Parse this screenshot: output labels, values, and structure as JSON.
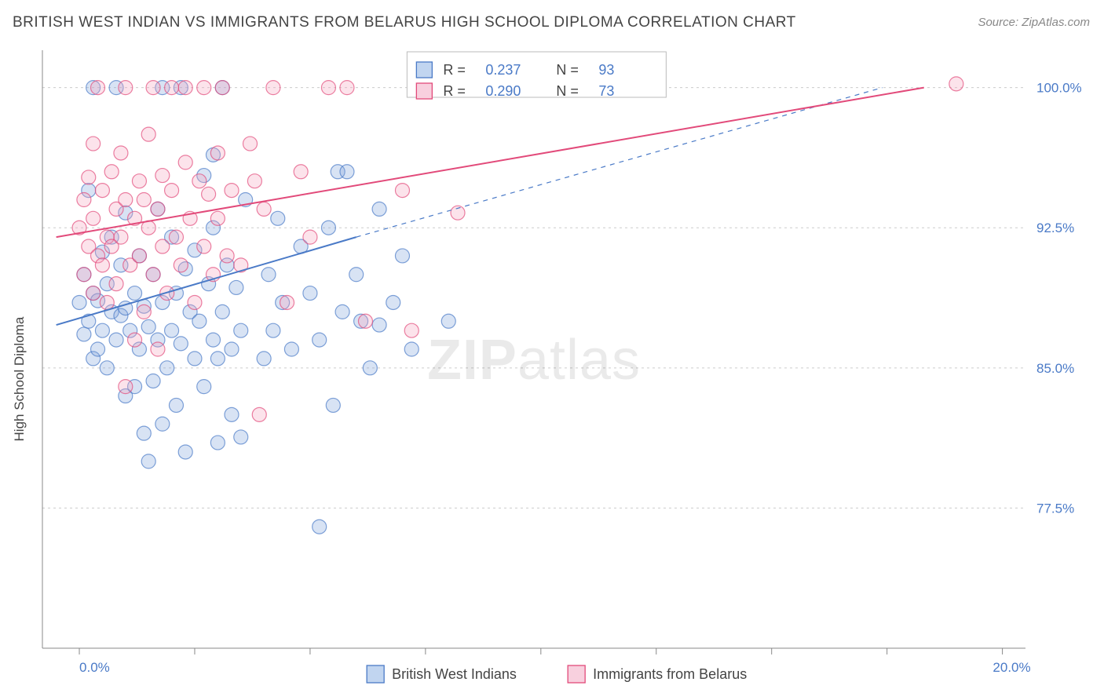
{
  "title": "BRITISH WEST INDIAN VS IMMIGRANTS FROM BELARUS HIGH SCHOOL DIPLOMA CORRELATION CHART",
  "source": "Source: ZipAtlas.com",
  "watermark_a": "ZIP",
  "watermark_b": "atlas",
  "chart": {
    "type": "scatter",
    "background_color": "#ffffff",
    "grid_color": "#cccccc",
    "axis_color": "#888888",
    "tick_color": "#888888",
    "label_color": "#4a7ac7",
    "ylabel": "High School Diploma",
    "xlim": [
      -0.8,
      20.5
    ],
    "ylim": [
      70.0,
      102.0
    ],
    "xticks": [
      0.0,
      2.5,
      5.0,
      7.5,
      10.0,
      12.5,
      15.0,
      17.5,
      20.0
    ],
    "xtick_labels": {
      "first": "0.0%",
      "last": "20.0%"
    },
    "yticks": [
      77.5,
      85.0,
      92.5,
      100.0
    ],
    "ytick_labels": [
      "77.5%",
      "85.0%",
      "92.5%",
      "100.0%"
    ],
    "marker_radius": 9,
    "marker_stroke_width": 1.2,
    "marker_fill_opacity": 0.3,
    "trend_line_width": 2,
    "trend_dash": "6,6",
    "series": [
      {
        "name": "British West Indians",
        "color_stroke": "#4a7ac7",
        "color_fill": "#7ea3dc",
        "R": "0.237",
        "N": "93",
        "trend": {
          "x1": -0.5,
          "y1": 87.3,
          "x2_solid": 6.0,
          "y2_solid": 92.0,
          "x2_dash": 17.4,
          "y2_dash": 100.0
        },
        "points": [
          [
            0.0,
            88.5
          ],
          [
            0.1,
            90.0
          ],
          [
            0.1,
            86.8
          ],
          [
            0.2,
            87.5
          ],
          [
            0.2,
            94.5
          ],
          [
            0.3,
            85.5
          ],
          [
            0.3,
            89.0
          ],
          [
            0.3,
            100.0
          ],
          [
            0.4,
            86.0
          ],
          [
            0.4,
            88.6
          ],
          [
            0.5,
            91.2
          ],
          [
            0.5,
            87.0
          ],
          [
            0.6,
            89.5
          ],
          [
            0.6,
            85.0
          ],
          [
            0.7,
            88.0
          ],
          [
            0.7,
            92.0
          ],
          [
            0.8,
            86.5
          ],
          [
            0.8,
            100.0
          ],
          [
            0.9,
            87.8
          ],
          [
            0.9,
            90.5
          ],
          [
            1.0,
            83.5
          ],
          [
            1.0,
            88.2
          ],
          [
            1.0,
            93.3
          ],
          [
            1.1,
            87.0
          ],
          [
            1.2,
            84.0
          ],
          [
            1.2,
            89.0
          ],
          [
            1.3,
            86.0
          ],
          [
            1.3,
            91.0
          ],
          [
            1.4,
            81.5
          ],
          [
            1.4,
            88.3
          ],
          [
            1.5,
            80.0
          ],
          [
            1.5,
            87.2
          ],
          [
            1.6,
            84.3
          ],
          [
            1.6,
            90.0
          ],
          [
            1.7,
            86.5
          ],
          [
            1.7,
            93.5
          ],
          [
            1.8,
            82.0
          ],
          [
            1.8,
            88.5
          ],
          [
            1.8,
            100.0
          ],
          [
            1.9,
            85.0
          ],
          [
            2.0,
            87.0
          ],
          [
            2.0,
            92.0
          ],
          [
            2.1,
            83.0
          ],
          [
            2.1,
            89.0
          ],
          [
            2.2,
            86.3
          ],
          [
            2.2,
            100.0
          ],
          [
            2.3,
            90.3
          ],
          [
            2.3,
            80.5
          ],
          [
            2.4,
            88.0
          ],
          [
            2.5,
            85.5
          ],
          [
            2.5,
            91.3
          ],
          [
            2.6,
            87.5
          ],
          [
            2.7,
            84.0
          ],
          [
            2.7,
            95.3
          ],
          [
            2.8,
            89.5
          ],
          [
            2.9,
            86.5
          ],
          [
            2.9,
            92.5
          ],
          [
            2.9,
            96.4
          ],
          [
            3.0,
            81.0
          ],
          [
            3.0,
            85.5
          ],
          [
            3.1,
            88.0
          ],
          [
            3.1,
            100.0
          ],
          [
            3.2,
            90.5
          ],
          [
            3.3,
            86.0
          ],
          [
            3.3,
            82.5
          ],
          [
            3.4,
            89.3
          ],
          [
            3.5,
            81.3
          ],
          [
            3.5,
            87.0
          ],
          [
            3.6,
            94.0
          ],
          [
            4.0,
            85.5
          ],
          [
            4.1,
            90.0
          ],
          [
            4.2,
            87.0
          ],
          [
            4.3,
            93.0
          ],
          [
            4.4,
            88.5
          ],
          [
            4.6,
            86.0
          ],
          [
            4.8,
            91.5
          ],
          [
            5.0,
            89.0
          ],
          [
            5.2,
            76.5
          ],
          [
            5.2,
            86.5
          ],
          [
            5.4,
            92.5
          ],
          [
            5.5,
            83.0
          ],
          [
            5.6,
            95.5
          ],
          [
            5.7,
            88.0
          ],
          [
            5.8,
            95.5
          ],
          [
            6.0,
            90.0
          ],
          [
            6.1,
            87.5
          ],
          [
            6.3,
            85.0
          ],
          [
            6.5,
            87.3
          ],
          [
            6.5,
            93.5
          ],
          [
            6.8,
            88.5
          ],
          [
            7.0,
            91.0
          ],
          [
            7.2,
            86.0
          ],
          [
            8.0,
            87.5
          ]
        ]
      },
      {
        "name": "Immigrants from Belarus",
        "color_stroke": "#e24a7a",
        "color_fill": "#f5a3bd",
        "R": "0.290",
        "N": "73",
        "trend": {
          "x1": -0.5,
          "y1": 92.0,
          "x2_solid": 18.3,
          "y2_solid": 100.0,
          "x2_dash": 18.3,
          "y2_dash": 100.0
        },
        "points": [
          [
            0.0,
            92.5
          ],
          [
            0.1,
            90.0
          ],
          [
            0.1,
            94.0
          ],
          [
            0.2,
            91.5
          ],
          [
            0.2,
            95.2
          ],
          [
            0.3,
            89.0
          ],
          [
            0.3,
            93.0
          ],
          [
            0.3,
            97.0
          ],
          [
            0.4,
            91.0
          ],
          [
            0.4,
            100.0
          ],
          [
            0.5,
            90.5
          ],
          [
            0.5,
            94.5
          ],
          [
            0.6,
            92.0
          ],
          [
            0.6,
            88.5
          ],
          [
            0.7,
            95.5
          ],
          [
            0.7,
            91.5
          ],
          [
            0.8,
            93.5
          ],
          [
            0.8,
            89.5
          ],
          [
            0.9,
            96.5
          ],
          [
            0.9,
            92.0
          ],
          [
            1.0,
            84.0
          ],
          [
            1.0,
            94.0
          ],
          [
            1.0,
            100.0
          ],
          [
            1.1,
            90.5
          ],
          [
            1.2,
            93.0
          ],
          [
            1.2,
            86.5
          ],
          [
            1.3,
            95.0
          ],
          [
            1.3,
            91.0
          ],
          [
            1.4,
            88.0
          ],
          [
            1.4,
            94.0
          ],
          [
            1.5,
            92.5
          ],
          [
            1.5,
            97.5
          ],
          [
            1.6,
            90.0
          ],
          [
            1.6,
            100.0
          ],
          [
            1.7,
            93.5
          ],
          [
            1.7,
            86.0
          ],
          [
            1.8,
            95.3
          ],
          [
            1.8,
            91.5
          ],
          [
            1.9,
            89.0
          ],
          [
            2.0,
            94.5
          ],
          [
            2.0,
            100.0
          ],
          [
            2.1,
            92.0
          ],
          [
            2.2,
            90.5
          ],
          [
            2.3,
            96.0
          ],
          [
            2.3,
            100.0
          ],
          [
            2.4,
            93.0
          ],
          [
            2.5,
            88.5
          ],
          [
            2.6,
            95.0
          ],
          [
            2.7,
            91.5
          ],
          [
            2.7,
            100.0
          ],
          [
            2.8,
            94.3
          ],
          [
            2.9,
            90.0
          ],
          [
            3.0,
            96.5
          ],
          [
            3.0,
            93.0
          ],
          [
            3.1,
            100.0
          ],
          [
            3.2,
            91.0
          ],
          [
            3.3,
            94.5
          ],
          [
            3.5,
            90.5
          ],
          [
            3.7,
            97.0
          ],
          [
            3.8,
            95.0
          ],
          [
            3.9,
            82.5
          ],
          [
            4.0,
            93.5
          ],
          [
            4.2,
            100.0
          ],
          [
            4.5,
            88.5
          ],
          [
            4.8,
            95.5
          ],
          [
            5.0,
            92.0
          ],
          [
            5.4,
            100.0
          ],
          [
            5.8,
            100.0
          ],
          [
            6.2,
            87.5
          ],
          [
            7.0,
            94.5
          ],
          [
            7.2,
            87.0
          ],
          [
            8.2,
            93.3
          ],
          [
            19.0,
            100.2
          ]
        ]
      }
    ],
    "top_legend": {
      "rows": [
        {
          "swatch_stroke": "#4a7ac7",
          "swatch_fill": "#c1d5f0",
          "r_label": "R  =",
          "r_val": "0.237",
          "n_label": "N  =",
          "n_val": "93"
        },
        {
          "swatch_stroke": "#e24a7a",
          "swatch_fill": "#f8d0de",
          "r_label": "R  =",
          "r_val": "0.290",
          "n_label": "N  =",
          "n_val": "73"
        }
      ]
    },
    "footer_legend": [
      {
        "swatch_stroke": "#4a7ac7",
        "swatch_fill": "#c1d5f0",
        "label": "British West Indians"
      },
      {
        "swatch_stroke": "#e24a7a",
        "swatch_fill": "#f8d0de",
        "label": "Immigrants from Belarus"
      }
    ]
  }
}
